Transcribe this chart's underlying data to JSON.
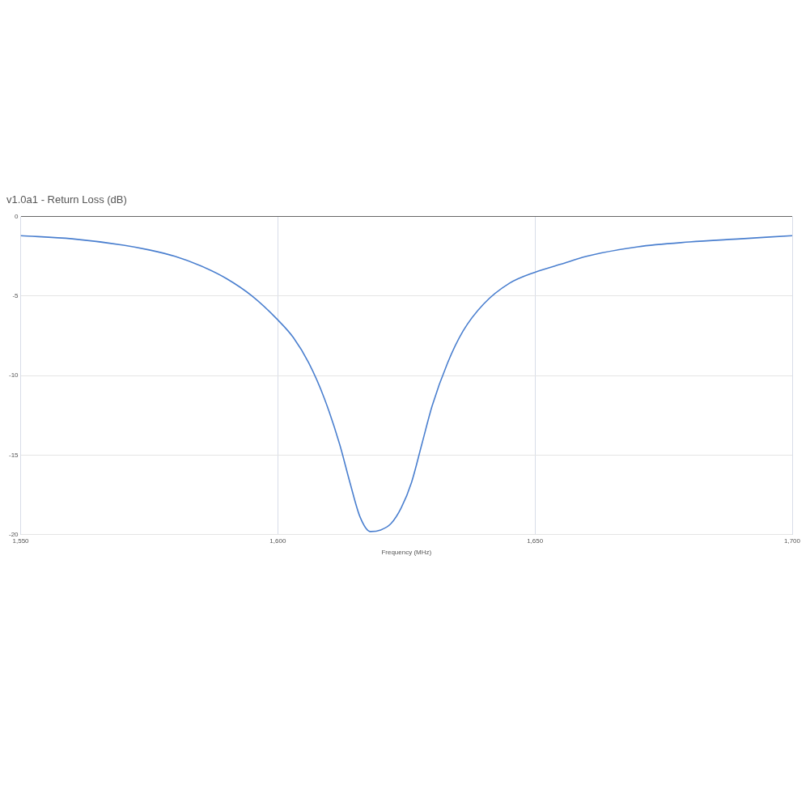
{
  "chart_data": {
    "type": "line",
    "title": "v1.0a1 - Return Loss (dB)",
    "xlabel": "Frequency (MHz)",
    "x": [
      1550,
      1560,
      1570,
      1575,
      1580,
      1585,
      1590,
      1595,
      1600,
      1603,
      1606,
      1609,
      1612,
      1614,
      1616,
      1618,
      1620,
      1622,
      1624,
      1626,
      1628,
      1630,
      1633,
      1636,
      1640,
      1645,
      1650,
      1655,
      1660,
      1670,
      1680,
      1690,
      1700
    ],
    "series": [
      {
        "color": "#4a7fcf",
        "values": [
          -1.2,
          -1.4,
          -1.8,
          -2.1,
          -2.5,
          -3.1,
          -3.9,
          -5.0,
          -6.5,
          -7.6,
          -9.2,
          -11.4,
          -14.3,
          -16.7,
          -18.9,
          -19.8,
          -19.7,
          -19.3,
          -18.3,
          -16.7,
          -14.3,
          -11.9,
          -9.2,
          -7.2,
          -5.5,
          -4.2,
          -3.5,
          -3.0,
          -2.5,
          -1.9,
          -1.6,
          -1.4,
          -1.2
        ]
      }
    ],
    "xlim": [
      1550,
      1700
    ],
    "xticks": [
      {
        "value": 1550,
        "label": "1,550"
      },
      {
        "value": 1600,
        "label": "1,600"
      },
      {
        "value": 1650,
        "label": "1,650"
      },
      {
        "value": 1700,
        "label": "1,700"
      }
    ],
    "ylim": [
      -20,
      0
    ],
    "yticks": [
      -20,
      -15,
      -10,
      -5,
      0
    ],
    "grid": true,
    "marker": "none",
    "line_style": "solid"
  }
}
